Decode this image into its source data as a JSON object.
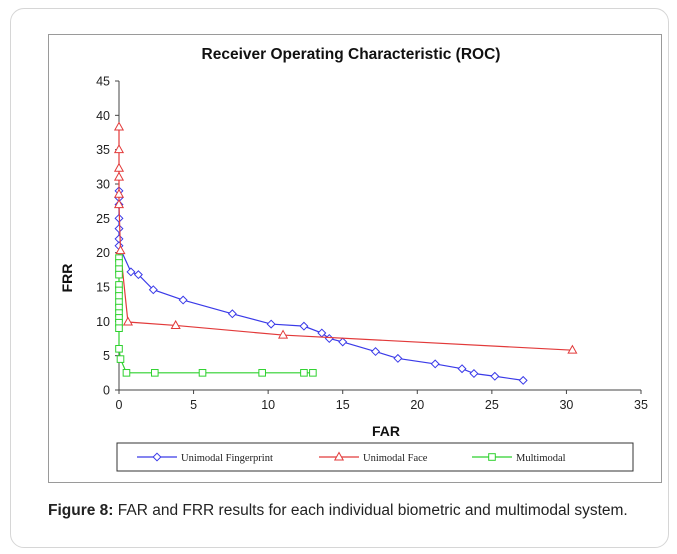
{
  "figure": {
    "caption_label": "Figure 8:",
    "caption_text": " FAR and FRR results for each individual biometric and multimodal system."
  },
  "chart_data": {
    "type": "line",
    "title": "Receiver Operating Characteristic (ROC)",
    "xlabel": "FAR",
    "ylabel": "FRR",
    "xlim": [
      0,
      35
    ],
    "ylim": [
      0,
      45
    ],
    "xticks": [
      0,
      5,
      10,
      15,
      20,
      25,
      30,
      35
    ],
    "yticks": [
      0,
      5,
      10,
      15,
      20,
      25,
      30,
      35,
      40,
      45
    ],
    "grid": false,
    "legend_position": "bottom",
    "series": [
      {
        "name": "Unimodal Fingerprint",
        "color": "#3a3ae8",
        "marker": "diamond",
        "points": [
          [
            0,
            29
          ],
          [
            0,
            28
          ],
          [
            0,
            27
          ],
          [
            0,
            25
          ],
          [
            0,
            23.5
          ],
          [
            0,
            22
          ],
          [
            0,
            21
          ],
          [
            0.8,
            17.2
          ],
          [
            1.3,
            16.8
          ],
          [
            2.3,
            14.6
          ],
          [
            4.3,
            13.1
          ],
          [
            7.6,
            11.1
          ],
          [
            10.2,
            9.6
          ],
          [
            12.4,
            9.3
          ],
          [
            13.6,
            8.3
          ],
          [
            14.1,
            7.5
          ],
          [
            15.0,
            7.0
          ],
          [
            17.2,
            5.6
          ],
          [
            18.7,
            4.6
          ],
          [
            21.2,
            3.8
          ],
          [
            23.0,
            3.1
          ],
          [
            23.8,
            2.4
          ],
          [
            25.2,
            2.0
          ],
          [
            27.1,
            1.4
          ]
        ]
      },
      {
        "name": "Unimodal Face",
        "color": "#e23a3a",
        "marker": "triangle",
        "points": [
          [
            0,
            38.3
          ],
          [
            0,
            35
          ],
          [
            0,
            32.3
          ],
          [
            0,
            31
          ],
          [
            0,
            28.5
          ],
          [
            0,
            27
          ],
          [
            0.1,
            20.3
          ],
          [
            0.6,
            9.9
          ],
          [
            3.8,
            9.4
          ],
          [
            11.0,
            8.0
          ],
          [
            30.4,
            5.8
          ]
        ]
      },
      {
        "name": "Multimodal",
        "color": "#2ed12e",
        "marker": "square",
        "points": [
          [
            0,
            19.2
          ],
          [
            0,
            18.5
          ],
          [
            0,
            17.6
          ],
          [
            0,
            16.8
          ],
          [
            0,
            15.3
          ],
          [
            0,
            14.5
          ],
          [
            0,
            13.7
          ],
          [
            0,
            12.8
          ],
          [
            0,
            12.0
          ],
          [
            0,
            11.2
          ],
          [
            0,
            10.5
          ],
          [
            0,
            9.8
          ],
          [
            0,
            9.0
          ],
          [
            0,
            6.0
          ],
          [
            0.1,
            4.5
          ],
          [
            0.5,
            2.5
          ],
          [
            2.4,
            2.5
          ],
          [
            5.6,
            2.5
          ],
          [
            9.6,
            2.5
          ],
          [
            12.4,
            2.5
          ],
          [
            13.0,
            2.5
          ]
        ]
      }
    ]
  }
}
